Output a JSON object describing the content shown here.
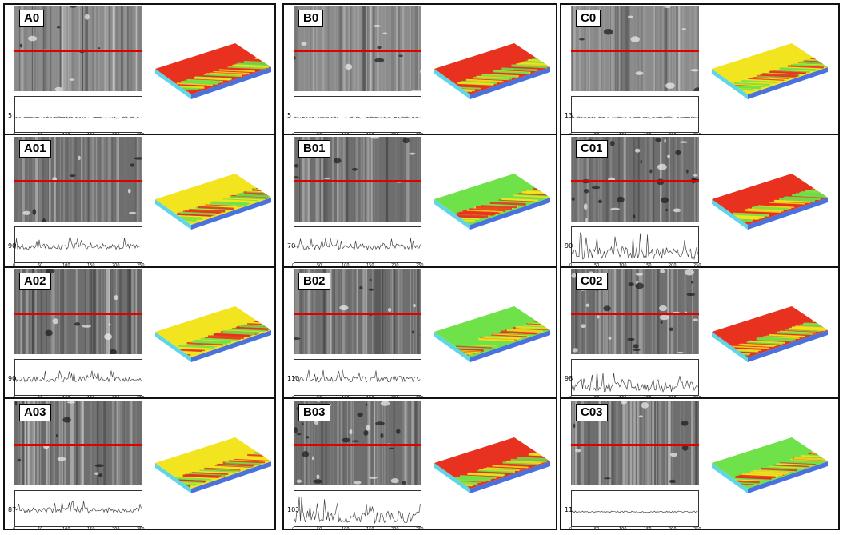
{
  "x_ticks": [
    "0",
    "50",
    "100",
    "150",
    "200",
    "250"
  ],
  "colors": {
    "border": "#111111",
    "scan_line": "#e00000",
    "surface_red": "#e8311f",
    "surface_yellow": "#f2e41e",
    "surface_green": "#6fe24a",
    "surface_cyan": "#5fd6e8",
    "surface_blue": "#1d4fd6"
  },
  "panels": [
    {
      "label": "A0",
      "y_label": "5",
      "profile_level": "flat",
      "surface": "red"
    },
    {
      "label": "B0",
      "y_label": "5",
      "profile_level": "flat",
      "surface": "red"
    },
    {
      "label": "C0",
      "y_label": "13",
      "profile_level": "flat",
      "surface": "yellow-red"
    },
    {
      "label": "A01",
      "y_label": "90",
      "profile_level": "medium",
      "surface": "yellow-red"
    },
    {
      "label": "B01",
      "y_label": "70",
      "profile_level": "medium",
      "surface": "green-yellow"
    },
    {
      "label": "C01",
      "y_label": "90",
      "profile_level": "high",
      "surface": "red"
    },
    {
      "label": "A02",
      "y_label": "90",
      "profile_level": "medium",
      "surface": "yellow-red"
    },
    {
      "label": "B02",
      "y_label": "110",
      "profile_level": "medium",
      "surface": "green-yellow"
    },
    {
      "label": "C02",
      "y_label": "98",
      "profile_level": "high",
      "surface": "red"
    },
    {
      "label": "A03",
      "y_label": "87",
      "profile_level": "medium",
      "surface": "yellow-red"
    },
    {
      "label": "B03",
      "y_label": "103",
      "profile_level": "high",
      "surface": "red"
    },
    {
      "label": "C03",
      "y_label": "11",
      "profile_level": "flat",
      "surface": "green"
    }
  ]
}
